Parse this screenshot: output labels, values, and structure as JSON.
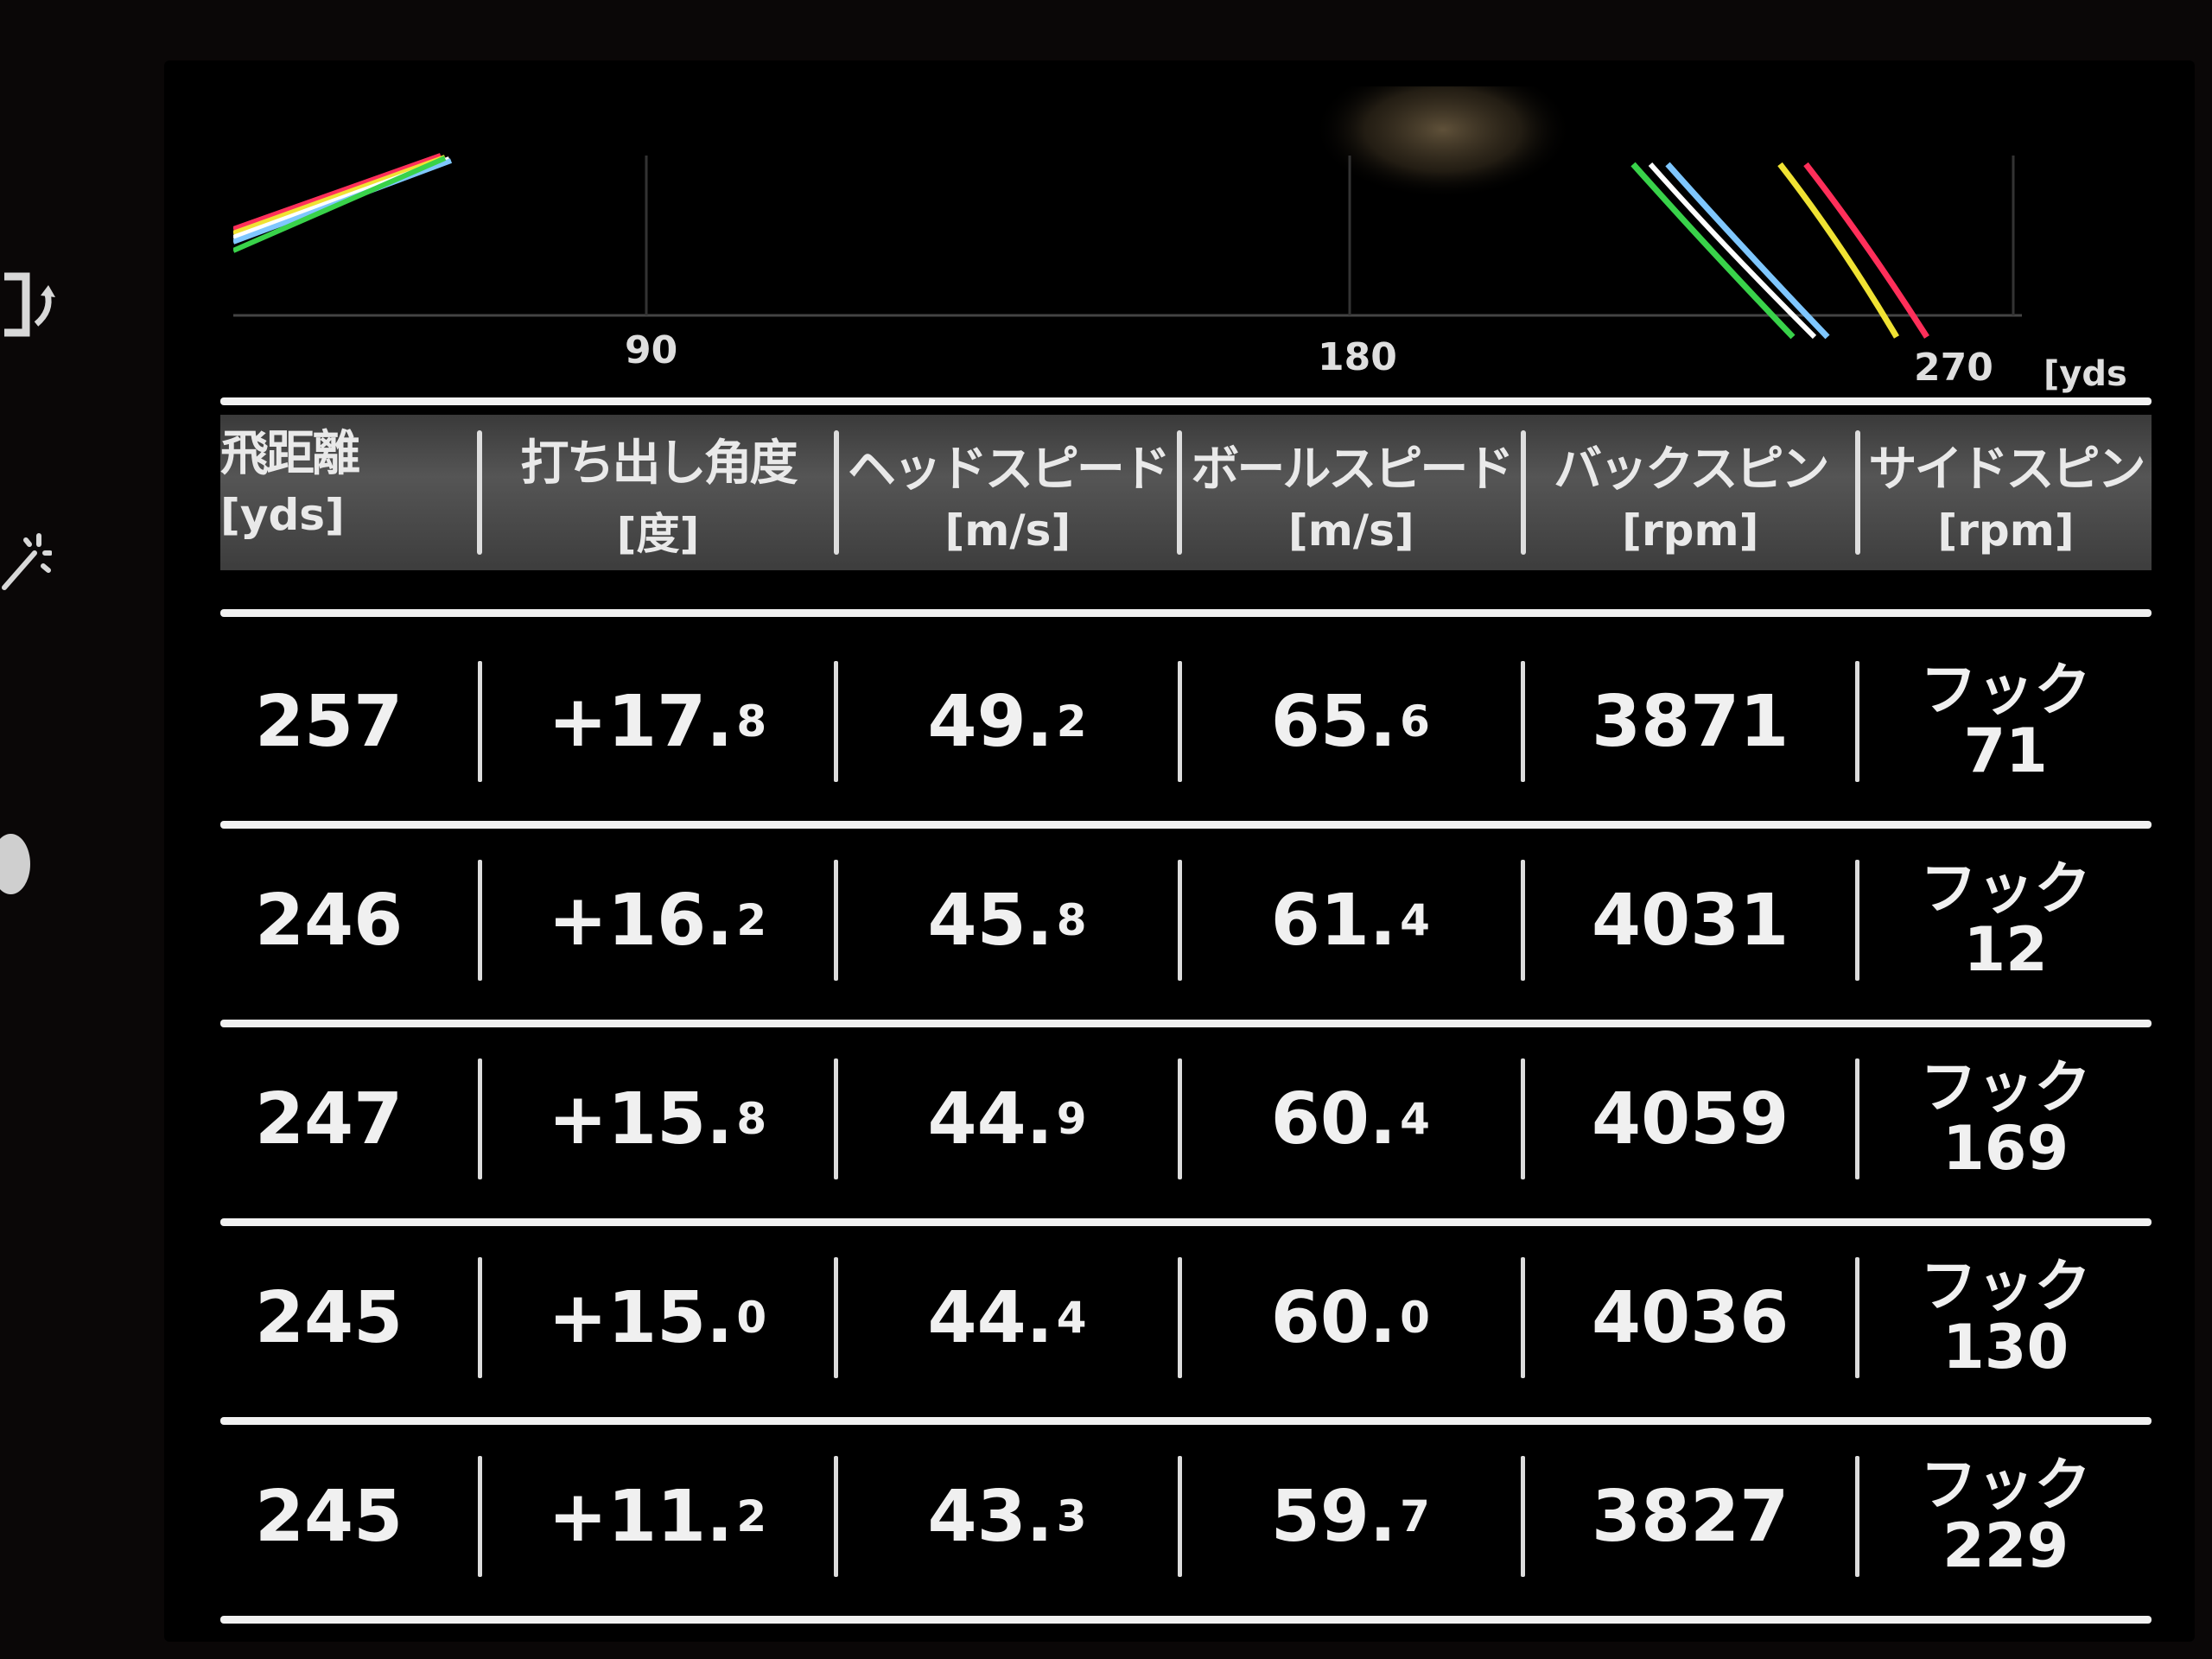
{
  "chart_data": {
    "type": "line",
    "title": "",
    "xlabel": "",
    "x_unit": "[yds",
    "x_ticks": [
      "90",
      "180",
      "270"
    ],
    "xlim": [
      0,
      290
    ],
    "grid": true,
    "series": [
      {
        "color": "#39d24a",
        "x": [
          246,
          247,
          245,
          245,
          257
        ],
        "note_values": []
      },
      {
        "color": "#7fc7ff"
      },
      {
        "color": "#f0e233"
      },
      {
        "color": "#ff2f5a"
      },
      {
        "color": "#ffffff"
      }
    ]
  },
  "table": {
    "headers": [
      {
        "title": "飛距離",
        "unit": "[yds]"
      },
      {
        "title": "打ち出し角度",
        "unit": "[度]"
      },
      {
        "title": "ヘッドスピード",
        "unit": "[m/s]"
      },
      {
        "title": "ボールスピード",
        "unit": "[m/s]"
      },
      {
        "title": "バックスピン",
        "unit": "[rpm]"
      },
      {
        "title": "サイドスピン",
        "unit": "[rpm]"
      }
    ],
    "rows": [
      {
        "distance": "257",
        "launch_int": "+17.",
        "launch_dec": "8",
        "head_int": "49.",
        "head_dec": "2",
        "ball_int": "65.",
        "ball_dec": "6",
        "backspin": "3871",
        "side_dir": "フック",
        "side_val": "71"
      },
      {
        "distance": "246",
        "launch_int": "+16.",
        "launch_dec": "2",
        "head_int": "45.",
        "head_dec": "8",
        "ball_int": "61.",
        "ball_dec": "4",
        "backspin": "4031",
        "side_dir": "フック",
        "side_val": "12"
      },
      {
        "distance": "247",
        "launch_int": "+15.",
        "launch_dec": "8",
        "head_int": "44.",
        "head_dec": "9",
        "ball_int": "60.",
        "ball_dec": "4",
        "backspin": "4059",
        "side_dir": "フック",
        "side_val": "169"
      },
      {
        "distance": "245",
        "launch_int": "+15.",
        "launch_dec": "0",
        "head_int": "44.",
        "head_dec": "4",
        "ball_int": "60.",
        "ball_dec": "0",
        "backspin": "4036",
        "side_dir": "フック",
        "side_val": "130"
      },
      {
        "distance": "245",
        "launch_int": "+11.",
        "launch_dec": "2",
        "head_int": "43.",
        "head_dec": "3",
        "ball_int": "59.",
        "ball_dec": "7",
        "backspin": "3827",
        "side_dir": "フック",
        "side_val": "229"
      }
    ]
  },
  "icons": [
    "rotate-icon",
    "sparkle-icon",
    "dot-icon"
  ]
}
